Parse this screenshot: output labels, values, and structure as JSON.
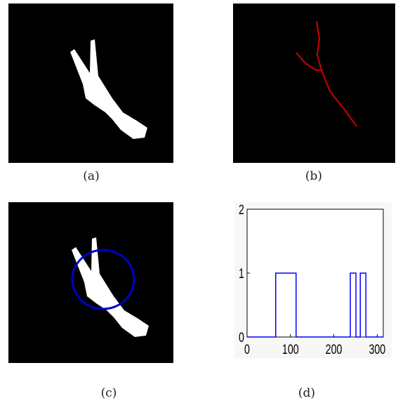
{
  "panels": [
    {
      "caption": "(a)"
    },
    {
      "caption": "(b)"
    },
    {
      "caption": "(c)"
    },
    {
      "caption": "(d)"
    }
  ],
  "chart_data": {
    "type": "line",
    "x": [
      0,
      66,
      66,
      113,
      113,
      238,
      238,
      251,
      251,
      261,
      261,
      274,
      274,
      314
    ],
    "series": [
      {
        "color": "#0000ff",
        "values": [
          0,
          0,
          1,
          1,
          0,
          0,
          1,
          1,
          0,
          0,
          1,
          1,
          0,
          0
        ]
      }
    ],
    "xlim": [
      0,
      314
    ],
    "xticks": [
      0,
      100,
      200,
      300
    ],
    "ylim": [
      0,
      2
    ],
    "yticks": [
      0,
      1,
      2
    ]
  }
}
